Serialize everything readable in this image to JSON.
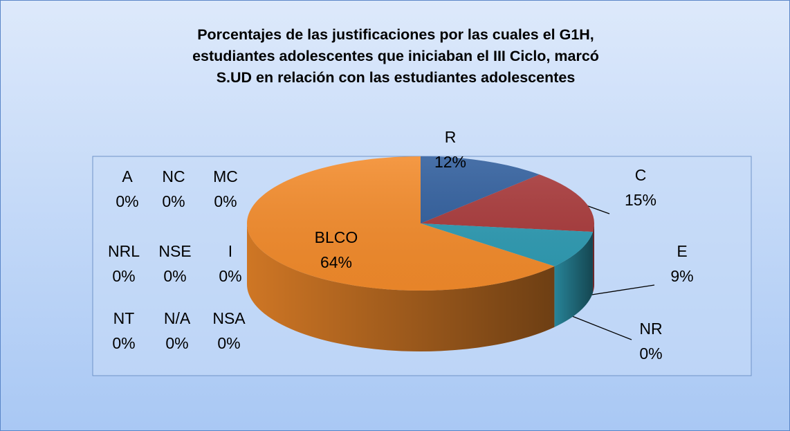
{
  "chart_data": {
    "type": "pie",
    "title": "Porcentajes de las justificaciones por las cuales el G1H,\nestudiantes adolescentes que iniciaban el III Ciclo, marcó\nS.UD en relación con  las estudiantes adolescentes",
    "categories": [
      "R",
      "C",
      "E",
      "NR",
      "BLCO",
      "A",
      "NC",
      "MC",
      "NRL",
      "NSE",
      "I",
      "NT",
      "N/A",
      "NSA"
    ],
    "values": [
      12,
      15,
      9,
      0,
      64,
      0,
      0,
      0,
      0,
      0,
      0,
      0,
      0,
      0
    ],
    "value_labels": [
      "12%",
      "15%",
      "9%",
      "0%",
      "64%",
      "0%",
      "0%",
      "0%",
      "0%",
      "0%",
      "0%",
      "0%",
      "0%",
      "0%"
    ],
    "colors": [
      "#2f5d9c",
      "#a8393a",
      "#2e9bb3",
      "#7a5ea8",
      "#f38b2b",
      "#5b9bd5",
      "#9bbb59",
      "#8064a2",
      "#4bacc6",
      "#f79646",
      "#c0504d",
      "#4f81bd",
      "#7f7f7f",
      "#1f497d"
    ],
    "start_angle": 0,
    "direction": "clockwise",
    "3d": true
  }
}
